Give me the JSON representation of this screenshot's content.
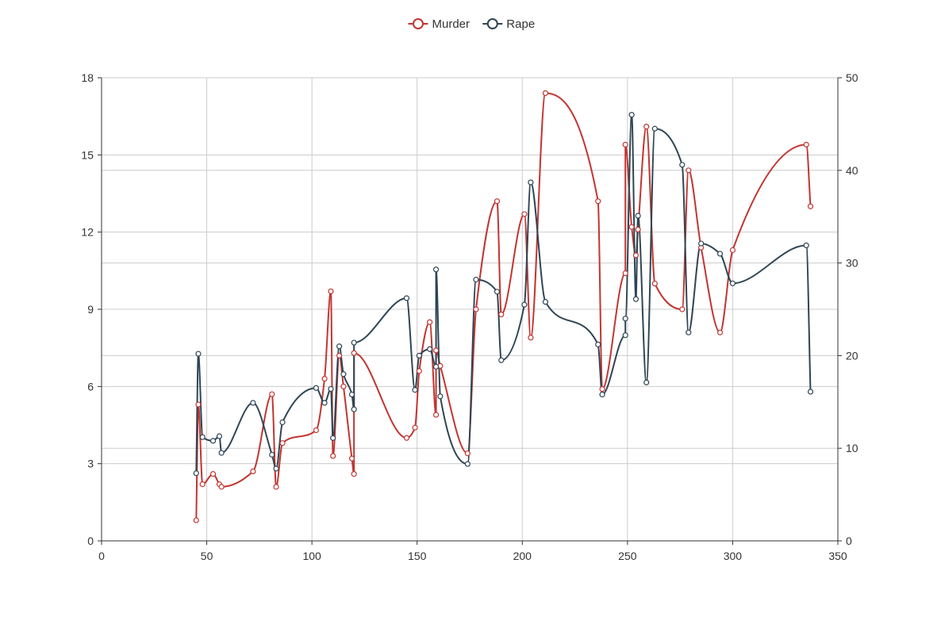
{
  "chart_data": {
    "type": "line",
    "title": "",
    "xlabel": "",
    "ylabel": "",
    "xlim": [
      0,
      350
    ],
    "ylim_left": [
      0,
      18
    ],
    "ylim_right": [
      0,
      50
    ],
    "x_ticks": [
      0,
      50,
      100,
      150,
      200,
      250,
      300,
      350
    ],
    "y_left_ticks": [
      0,
      3,
      6,
      9,
      12,
      15,
      18
    ],
    "y_right_ticks": [
      0,
      10,
      20,
      30,
      40,
      50
    ],
    "legend_position": "top-center",
    "grid": true,
    "smooth": true,
    "series": [
      {
        "name": "Murder",
        "axis": "left",
        "color": "#c23531",
        "points": [
          [
            45,
            0.8
          ],
          [
            46,
            5.3
          ],
          [
            48,
            2.2
          ],
          [
            53,
            2.6
          ],
          [
            56,
            2.2
          ],
          [
            57,
            2.1
          ],
          [
            72,
            2.7
          ],
          [
            81,
            5.7
          ],
          [
            83,
            2.1
          ],
          [
            86,
            3.8
          ],
          [
            102,
            4.3
          ],
          [
            106,
            6.3
          ],
          [
            109,
            9.7
          ],
          [
            110,
            3.3
          ],
          [
            113,
            7.2
          ],
          [
            115,
            6.0
          ],
          [
            119,
            3.2
          ],
          [
            120,
            2.6
          ],
          [
            120,
            7.3
          ],
          [
            145,
            4.0
          ],
          [
            149,
            4.4
          ],
          [
            151,
            6.6
          ],
          [
            156,
            8.5
          ],
          [
            159,
            4.9
          ],
          [
            159,
            7.4
          ],
          [
            161,
            6.8
          ],
          [
            174,
            3.4
          ],
          [
            178,
            9.0
          ],
          [
            188,
            13.2
          ],
          [
            190,
            8.8
          ],
          [
            201,
            12.7
          ],
          [
            204,
            7.9
          ],
          [
            211,
            17.4
          ],
          [
            236,
            13.2
          ],
          [
            238,
            5.9
          ],
          [
            249,
            10.4
          ],
          [
            249,
            15.4
          ],
          [
            252,
            12.2
          ],
          [
            254,
            11.1
          ],
          [
            255,
            12.1
          ],
          [
            259,
            16.1
          ],
          [
            263,
            10.0
          ],
          [
            276,
            9.0
          ],
          [
            279,
            14.4
          ],
          [
            285,
            11.4
          ],
          [
            294,
            8.1
          ],
          [
            300,
            11.3
          ],
          [
            335,
            15.4
          ],
          [
            337,
            13.0
          ]
        ]
      },
      {
        "name": "Rape",
        "axis": "right",
        "color": "#2f4554",
        "points": [
          [
            45,
            7.3
          ],
          [
            46,
            20.2
          ],
          [
            48,
            11.2
          ],
          [
            53,
            10.8
          ],
          [
            56,
            11.3
          ],
          [
            57,
            9.5
          ],
          [
            72,
            14.9
          ],
          [
            81,
            9.3
          ],
          [
            83,
            7.8
          ],
          [
            86,
            12.8
          ],
          [
            102,
            16.5
          ],
          [
            106,
            14.9
          ],
          [
            109,
            16.4
          ],
          [
            110,
            11.1
          ],
          [
            113,
            21.0
          ],
          [
            115,
            18.0
          ],
          [
            119,
            15.8
          ],
          [
            120,
            14.2
          ],
          [
            120,
            21.4
          ],
          [
            145,
            26.2
          ],
          [
            149,
            16.3
          ],
          [
            151,
            20.0
          ],
          [
            156,
            20.7
          ],
          [
            159,
            18.8
          ],
          [
            159,
            29.3
          ],
          [
            161,
            15.6
          ],
          [
            174,
            8.3
          ],
          [
            178,
            28.2
          ],
          [
            188,
            26.9
          ],
          [
            190,
            19.5
          ],
          [
            201,
            25.5
          ],
          [
            204,
            38.7
          ],
          [
            211,
            25.8
          ],
          [
            236,
            21.2
          ],
          [
            238,
            15.8
          ],
          [
            249,
            22.2
          ],
          [
            249,
            24.0
          ],
          [
            252,
            46.0
          ],
          [
            254,
            26.1
          ],
          [
            255,
            35.1
          ],
          [
            259,
            17.1
          ],
          [
            263,
            44.5
          ],
          [
            276,
            40.6
          ],
          [
            279,
            22.5
          ],
          [
            285,
            32.1
          ],
          [
            294,
            31.0
          ],
          [
            300,
            27.8
          ],
          [
            335,
            31.9
          ],
          [
            337,
            16.1
          ]
        ]
      }
    ]
  }
}
